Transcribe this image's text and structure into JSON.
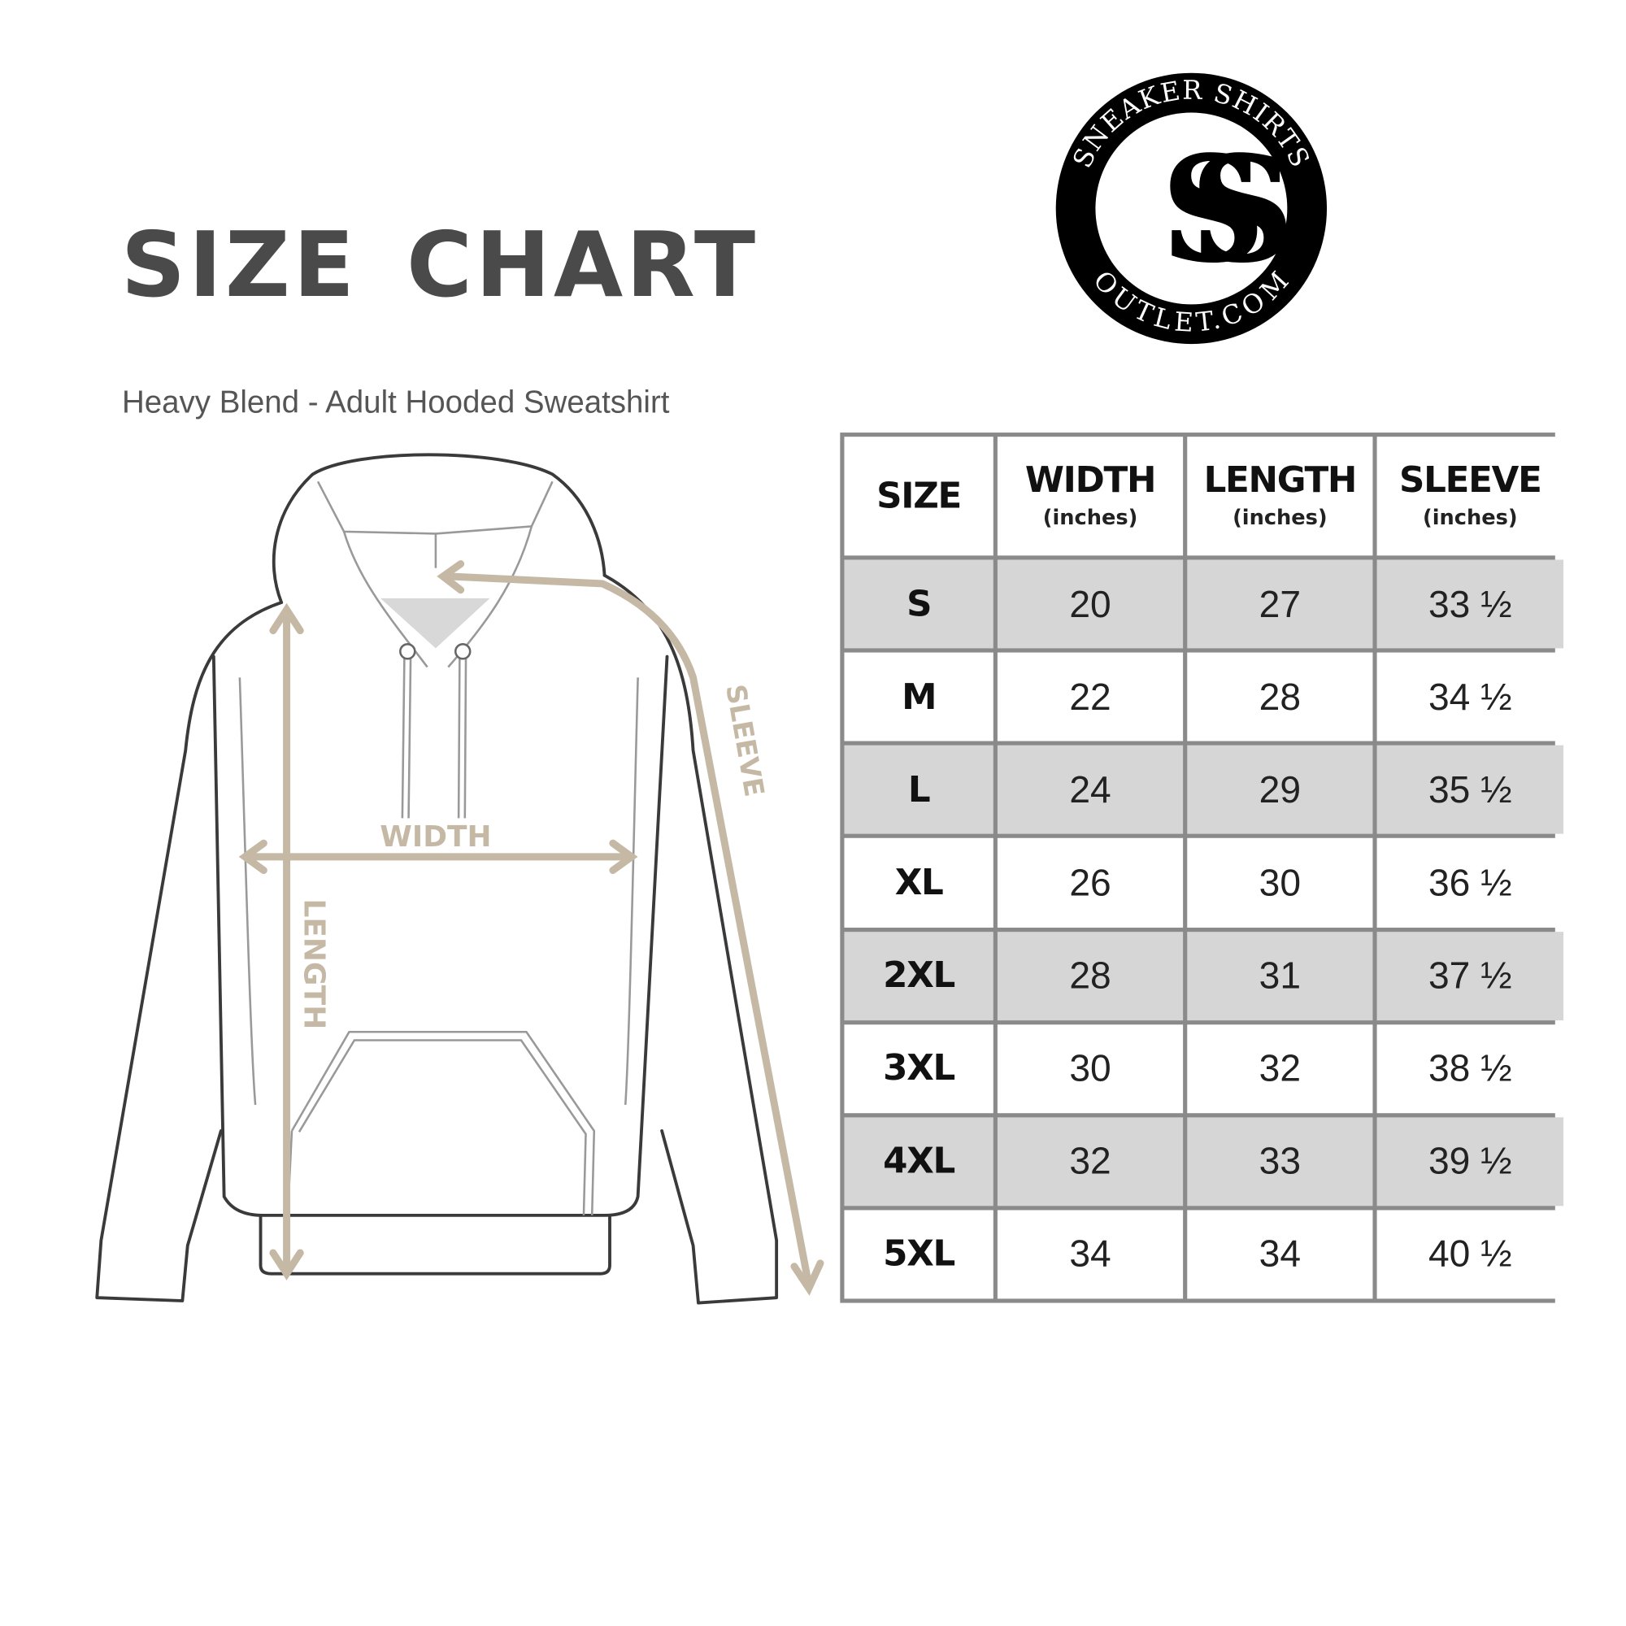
{
  "title": "SIZE CHART",
  "subtitle": "Heavy Blend - Adult Hooded Sweatshirt",
  "logo": {
    "top_text": "SNEAKER SHIRTS",
    "bottom_text": "OUTLET.COM",
    "monogram": "SS"
  },
  "diagram": {
    "width_label": "WIDTH",
    "length_label": "LENGTH",
    "sleeve_label": "SLEEVE",
    "arrow_color": "#c5b9a6"
  },
  "colors": {
    "title": "#4a4a4a",
    "row_alt": "#d6d6d6",
    "grid": "#8a8a8a"
  },
  "table": {
    "headers": [
      {
        "label": "SIZE",
        "unit": ""
      },
      {
        "label": "WIDTH",
        "unit": "(inches)"
      },
      {
        "label": "LENGTH",
        "unit": "(inches)"
      },
      {
        "label": "SLEEVE",
        "unit": "(inches)"
      }
    ],
    "rows": [
      [
        "S",
        "20",
        "27",
        "33 ½"
      ],
      [
        "M",
        "22",
        "28",
        "34 ½"
      ],
      [
        "L",
        "24",
        "29",
        "35 ½"
      ],
      [
        "XL",
        "26",
        "30",
        "36 ½"
      ],
      [
        "2XL",
        "28",
        "31",
        "37 ½"
      ],
      [
        "3XL",
        "30",
        "32",
        "38 ½"
      ],
      [
        "4XL",
        "32",
        "33",
        "39 ½"
      ],
      [
        "5XL",
        "34",
        "34",
        "40 ½"
      ]
    ]
  }
}
